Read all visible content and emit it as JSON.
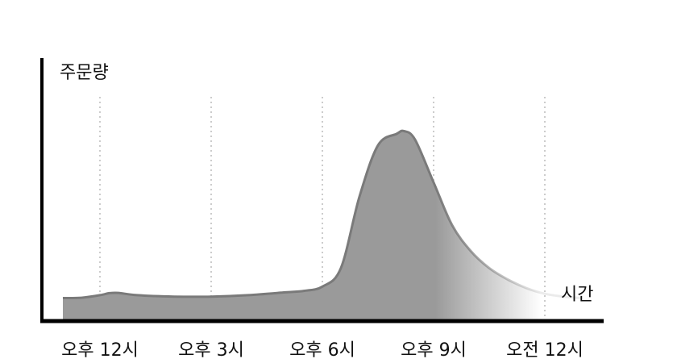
{
  "chart_data": {
    "type": "area",
    "ylabel": "주문량",
    "xlabel": "시간",
    "categories": [
      "오후 12시",
      "오후 3시",
      "오후 6시",
      "오후 9시",
      "오전 12시"
    ],
    "x": [
      11,
      11.5,
      12,
      12.25,
      12.5,
      13,
      14,
      15,
      16,
      17,
      17.5,
      18,
      18.5,
      19,
      19.5,
      20,
      20.2,
      20.5,
      21,
      21.5,
      22,
      22.5,
      23,
      23.5,
      24,
      24.5,
      25
    ],
    "y": [
      4.5,
      4.6,
      5.5,
      6.2,
      6.3,
      5.5,
      5.0,
      5.0,
      5.5,
      6.5,
      7.0,
      8.5,
      15,
      40,
      58,
      62,
      63,
      60,
      45,
      30,
      21,
      15,
      11,
      8,
      6,
      5,
      4.5
    ],
    "xlim": [
      10.5,
      25.5
    ],
    "ylim": [
      -3,
      75
    ],
    "grid": "vertical-dotted",
    "colors": {
      "fill": "#9a9a9a",
      "stroke": "#7a7a7a",
      "axis": "#000000",
      "grid": "#cccccc"
    }
  }
}
